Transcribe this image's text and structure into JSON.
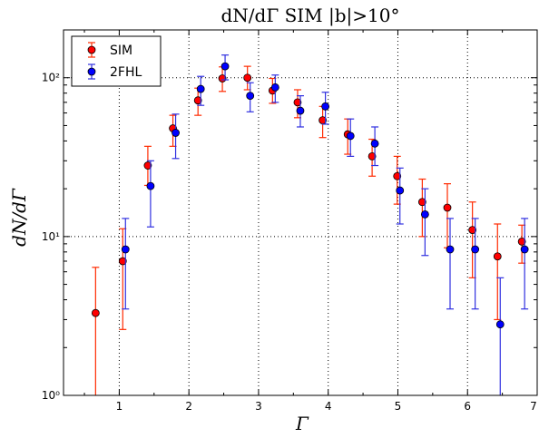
{
  "chart_data": {
    "type": "scatter",
    "title": "dN/dΓ SIM |b|>10°",
    "xlabel": "Γ",
    "ylabel": "dN/dΓ",
    "xlim": [
      0.2,
      7.0
    ],
    "ylim": [
      1,
      200
    ],
    "yscale": "log",
    "grid": true,
    "legend_position": "top-left",
    "xticks": [
      "1",
      "2",
      "3",
      "4",
      "5",
      "6",
      "7"
    ],
    "yticks": [
      "10⁰",
      "10¹",
      "10²"
    ],
    "series": [
      {
        "name": "SIM",
        "color": "#ff0000",
        "errcolor": "#ff2a00",
        "points": [
          {
            "x": 0.68,
            "y": 3.3,
            "lo": 1.0,
            "hi": 6.4
          },
          {
            "x": 1.07,
            "y": 7.0,
            "lo": 2.6,
            "hi": 11.2
          },
          {
            "x": 1.43,
            "y": 28.0,
            "lo": 21.0,
            "hi": 37.0
          },
          {
            "x": 1.79,
            "y": 48.0,
            "lo": 37.0,
            "hi": 58.0
          },
          {
            "x": 2.15,
            "y": 72.0,
            "lo": 58.0,
            "hi": 86.0
          },
          {
            "x": 2.5,
            "y": 99.0,
            "lo": 82.0,
            "hi": 117.0
          },
          {
            "x": 2.86,
            "y": 100.0,
            "lo": 84.0,
            "hi": 118.0
          },
          {
            "x": 3.22,
            "y": 83.0,
            "lo": 69.0,
            "hi": 99.0
          },
          {
            "x": 3.58,
            "y": 70.0,
            "lo": 56.0,
            "hi": 84.0
          },
          {
            "x": 3.94,
            "y": 54.0,
            "lo": 42.0,
            "hi": 66.0
          },
          {
            "x": 4.3,
            "y": 44.0,
            "lo": 33.0,
            "hi": 55.0
          },
          {
            "x": 4.65,
            "y": 32.0,
            "lo": 24.0,
            "hi": 41.0
          },
          {
            "x": 5.01,
            "y": 24.0,
            "lo": 16.0,
            "hi": 32.0
          },
          {
            "x": 5.37,
            "y": 16.5,
            "lo": 10.0,
            "hi": 23.0
          },
          {
            "x": 5.73,
            "y": 15.2,
            "lo": 8.5,
            "hi": 21.5
          },
          {
            "x": 6.09,
            "y": 11.0,
            "lo": 5.5,
            "hi": 16.5
          },
          {
            "x": 6.45,
            "y": 7.5,
            "lo": 3.0,
            "hi": 12.0
          },
          {
            "x": 6.8,
            "y": 9.3,
            "lo": 6.8,
            "hi": 11.8
          }
        ]
      },
      {
        "name": "2FHL",
        "color": "#0000ff",
        "errcolor": "#3030e0",
        "points": [
          {
            "x": 1.07,
            "y": 8.3,
            "lo": 3.5,
            "hi": 13.0
          },
          {
            "x": 1.43,
            "y": 20.8,
            "lo": 11.5,
            "hi": 30.0
          },
          {
            "x": 1.79,
            "y": 45.0,
            "lo": 31.0,
            "hi": 59.0
          },
          {
            "x": 2.15,
            "y": 85.0,
            "lo": 67.0,
            "hi": 102.0
          },
          {
            "x": 2.5,
            "y": 118.0,
            "lo": 97.0,
            "hi": 139.0
          },
          {
            "x": 2.86,
            "y": 77.0,
            "lo": 61.0,
            "hi": 93.0
          },
          {
            "x": 3.22,
            "y": 87.0,
            "lo": 70.0,
            "hi": 104.0
          },
          {
            "x": 3.58,
            "y": 62.0,
            "lo": 49.0,
            "hi": 77.0
          },
          {
            "x": 3.94,
            "y": 66.0,
            "lo": 51.0,
            "hi": 81.0
          },
          {
            "x": 4.3,
            "y": 43.0,
            "lo": 32.0,
            "hi": 55.0
          },
          {
            "x": 4.65,
            "y": 38.5,
            "lo": 28.0,
            "hi": 49.0
          },
          {
            "x": 5.01,
            "y": 19.5,
            "lo": 12.0,
            "hi": 27.0
          },
          {
            "x": 5.37,
            "y": 13.8,
            "lo": 7.6,
            "hi": 20.0
          },
          {
            "x": 5.73,
            "y": 8.3,
            "lo": 3.5,
            "hi": 13.0
          },
          {
            "x": 6.09,
            "y": 8.3,
            "lo": 3.5,
            "hi": 13.0
          },
          {
            "x": 6.45,
            "y": 2.8,
            "lo": 1.0,
            "hi": 5.5
          },
          {
            "x": 6.8,
            "y": 8.3,
            "lo": 3.5,
            "hi": 13.0
          }
        ]
      }
    ]
  }
}
